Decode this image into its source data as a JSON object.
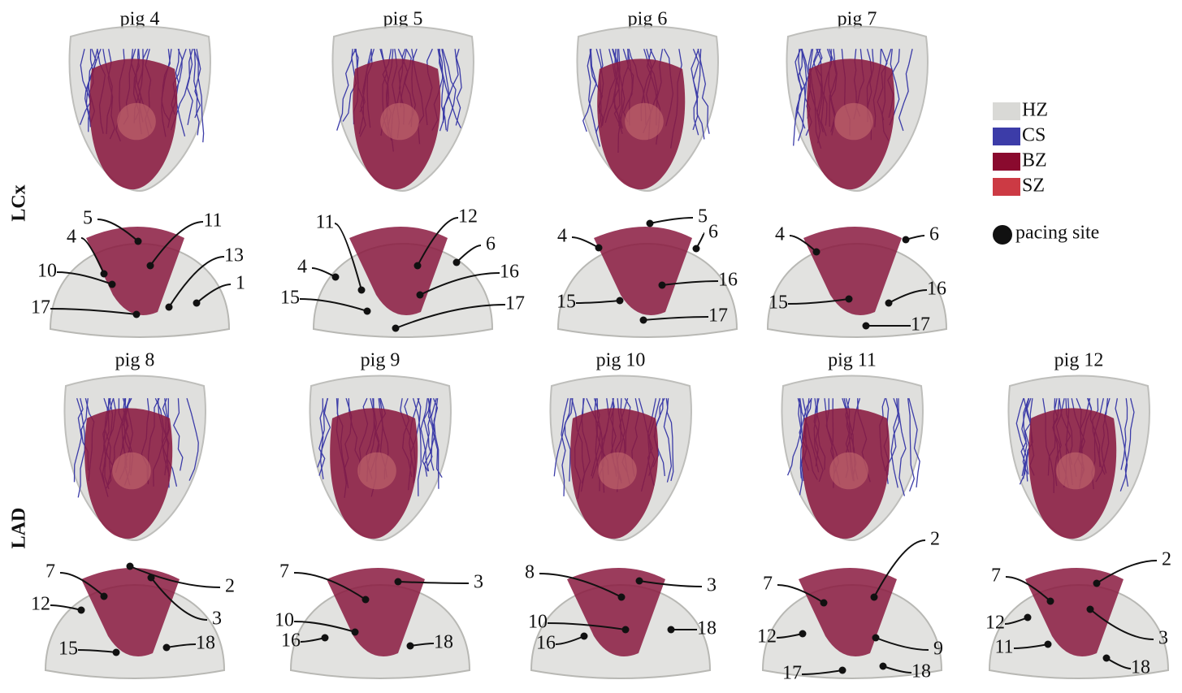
{
  "rows": [
    {
      "label": "LCx",
      "panels": [
        {
          "title": "pig 4",
          "sites": [
            "5",
            "11",
            "4",
            "13",
            "10",
            "1",
            "17"
          ]
        },
        {
          "title": "pig 5",
          "sites": [
            "11",
            "12",
            "6",
            "4",
            "16",
            "15",
            "17"
          ]
        },
        {
          "title": "pig 6",
          "sites": [
            "5",
            "4",
            "6",
            "16",
            "15",
            "17"
          ]
        },
        {
          "title": "pig 7",
          "sites": [
            "4",
            "6",
            "16",
            "15",
            "17"
          ]
        }
      ]
    },
    {
      "label": "LAD",
      "panels": [
        {
          "title": "pig 8",
          "sites": [
            "7",
            "2",
            "3",
            "12",
            "15",
            "18"
          ]
        },
        {
          "title": "pig 9",
          "sites": [
            "7",
            "3",
            "10",
            "16",
            "18"
          ]
        },
        {
          "title": "pig 10",
          "sites": [
            "8",
            "3",
            "10",
            "16",
            "18"
          ]
        },
        {
          "title": "pig 11",
          "sites": [
            "2",
            "7",
            "12",
            "9",
            "17",
            "18"
          ]
        },
        {
          "title": "pig 12",
          "sites": [
            "2",
            "7",
            "12",
            "3",
            "11",
            "18"
          ]
        }
      ]
    }
  ],
  "legend": {
    "items": [
      {
        "label": "HZ",
        "color": "#d9d9d6"
      },
      {
        "label": "CS",
        "color": "#3c3ca8"
      },
      {
        "label": "BZ",
        "color": "#8a0a2e"
      },
      {
        "label": "SZ",
        "color": "#cc3a44"
      }
    ],
    "pacing_label": "pacing site"
  }
}
